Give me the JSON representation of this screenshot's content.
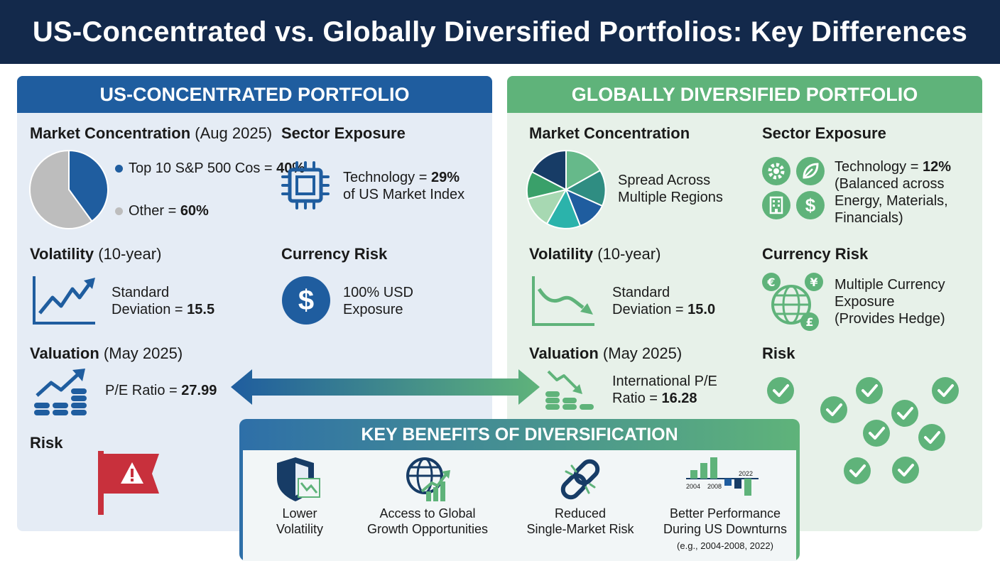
{
  "title": "US-Concentrated vs. Globally Diversified Portfolios: Key Differences",
  "colors": {
    "navy": "#13294b",
    "us_blue": "#1f5d9f",
    "global_green": "#5fb37a",
    "risk_red": "#c8303c"
  },
  "us": {
    "header": "US-CONCENTRATED PORTFOLIO",
    "market": {
      "title": "Market Concentration",
      "qualifier": "(Aug 2025)",
      "legend1_text": "Top 10 S&P 500 Cos = ",
      "legend1_value": "40%",
      "legend2_text": "Other = ",
      "legend2_value": "60%",
      "slices": [
        40,
        60
      ]
    },
    "sector": {
      "title": "Sector Exposure",
      "line1_text": "Technology = ",
      "line1_value": "29%",
      "line2": "of US Market Index",
      "icon": "cpu-chip-icon"
    },
    "volatility": {
      "title": "Volatility",
      "qualifier": "(10-year)",
      "line1": "Standard",
      "line2_text": "Deviation = ",
      "line2_value": "15.5",
      "icon": "rising-line-chart-icon"
    },
    "currency": {
      "title": "Currency Risk",
      "line1": "100% USD",
      "line2": "Exposure",
      "icon": "dollar-coin-icon"
    },
    "valuation": {
      "title": "Valuation",
      "qualifier": "(May 2025)",
      "text": "P/E Ratio = ",
      "value": "27.99",
      "icon": "coins-growth-icon"
    },
    "risk": {
      "title": "Risk",
      "icon": "warning-flag-icon"
    }
  },
  "global": {
    "header": "GLOBALLY DIVERSIFIED PORTFOLIO",
    "market": {
      "title": "Market Concentration",
      "line1": "Spread Across",
      "line2": "Multiple Regions"
    },
    "sector": {
      "title": "Sector Exposure",
      "line1_text": "Technology = ",
      "line1_value": "12%",
      "line2": "(Balanced across",
      "line3": "Energy, Materials,",
      "line4": "Financials)"
    },
    "volatility": {
      "title": "Volatility",
      "qualifier": "(10-year)",
      "line1": "Standard",
      "line2_text": "Deviation = ",
      "line2_value": "15.0",
      "icon": "falling-line-chart-icon"
    },
    "currency": {
      "title": "Currency Risk",
      "line1": "Multiple Currency",
      "line2": "Exposure",
      "line3": "(Provides Hedge)",
      "icon": "globe-currency-icon"
    },
    "valuation": {
      "title": "Valuation",
      "qualifier": "(May 2025)",
      "line1": "International P/E",
      "line2_text": "Ratio = ",
      "line2_value": "16.28",
      "icon": "coins-decline-icon"
    },
    "risk": {
      "title": "Risk",
      "icon": "check-circle-icon"
    }
  },
  "benefits": {
    "header": "KEY BENEFITS OF DIVERSIFICATION",
    "items": [
      {
        "line1": "Lower",
        "line2": "Volatility",
        "icon": "shield-chart-icon"
      },
      {
        "line1": "Access to Global",
        "line2": "Growth Opportunities",
        "icon": "globe-growth-icon"
      },
      {
        "line1": "Reduced",
        "line2": "Single-Market Risk",
        "icon": "broken-chain-icon"
      },
      {
        "line1": "Better Performance",
        "line2": "During US Downturns",
        "line3": "(e.g., 2004-2008, 2022)",
        "icon": "bar-chart-years-icon"
      }
    ],
    "chart_labels": [
      "2004",
      "2008",
      "2022"
    ]
  }
}
